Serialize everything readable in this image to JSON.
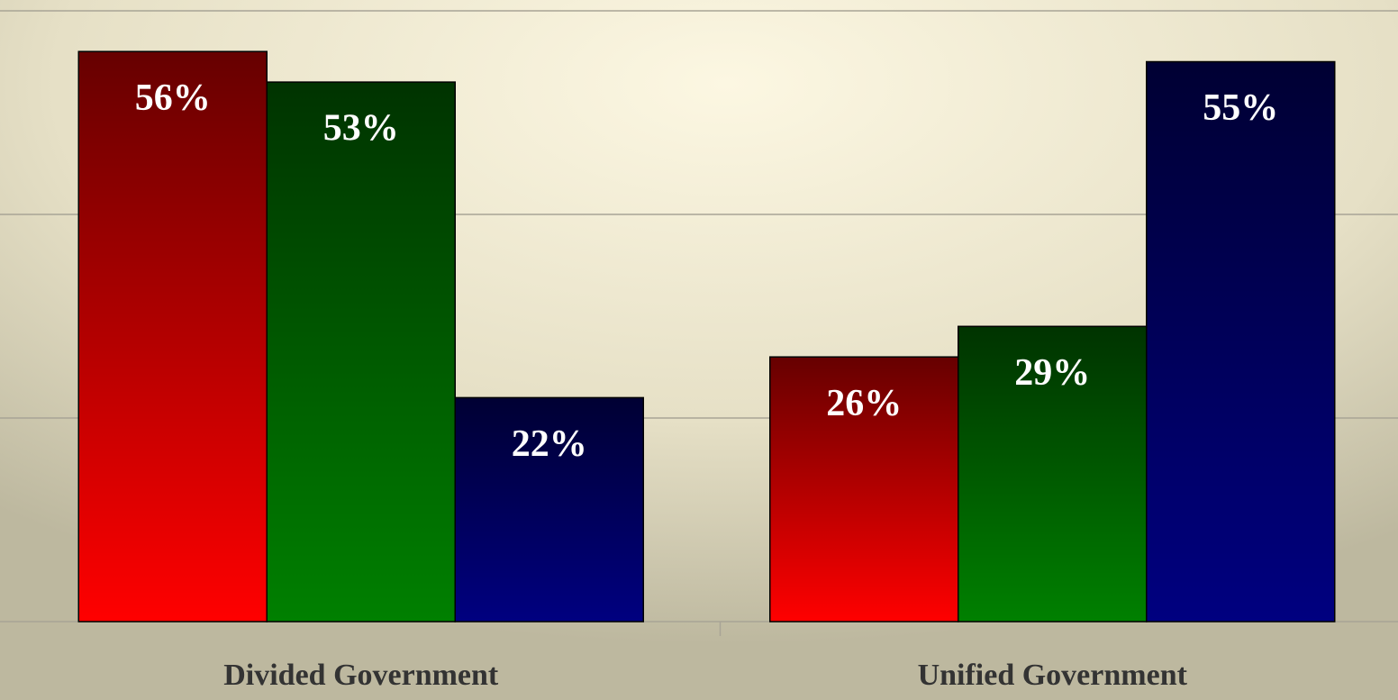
{
  "chart_data": {
    "type": "bar",
    "categories": [
      "Divided Government",
      "Unified Government"
    ],
    "series": [
      {
        "color": "#ff0000",
        "values": [
          56,
          26
        ],
        "value_labels": [
          "56%",
          "26%"
        ]
      },
      {
        "color": "#008000",
        "values": [
          53,
          29
        ],
        "value_labels": [
          "53%",
          "29%"
        ]
      },
      {
        "color": "#000080",
        "values": [
          22,
          55
        ],
        "value_labels": [
          "22%",
          "55%"
        ]
      }
    ],
    "ylim": [
      0,
      60
    ],
    "yticks": [
      0,
      20,
      40,
      60
    ],
    "grid": true
  }
}
